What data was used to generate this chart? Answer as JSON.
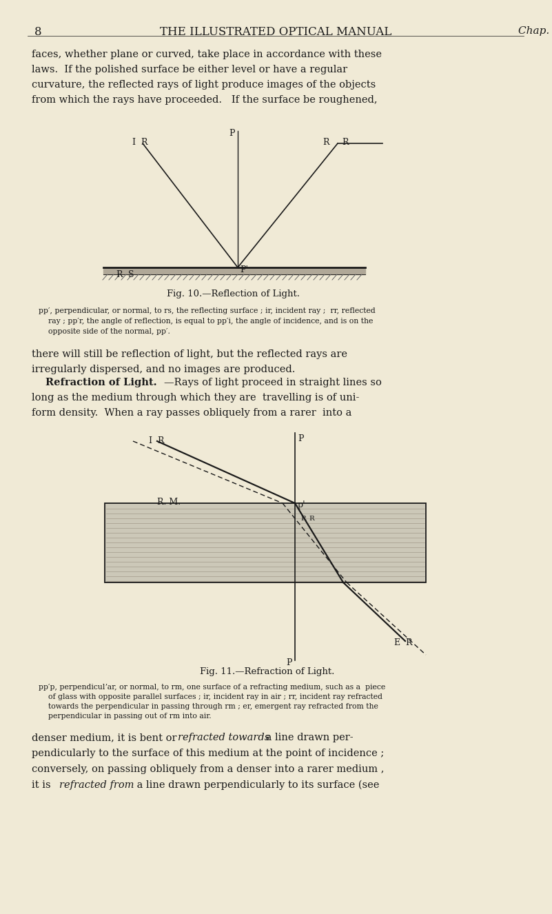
{
  "bg_color": "#f0ead6",
  "text_color": "#1a1a1a",
  "line_color": "#1a1a1a",
  "page_width": 8.01,
  "page_height": 13.26,
  "header_text": "THE ILLUSTRATED OPTICAL MANUAL",
  "header_page": "8",
  "header_chap": "Chap. I",
  "para1": "faces, whether plane or curved, take place in accordance with these\nlaws.  If the polished surface be either level or have a regular\ncurvature, the reflected rays of light produce images of the objects\nfrom which the rays have proceeded.   If the surface be roughened,",
  "fig10_caption": "Fig. 10.—Reflection of Light.",
  "fig10_desc1": "pp′, perpendicular, or normal, to rs, the reflecting surface ; ir, incident ray ;  rr, reflected",
  "fig10_desc2": "    ray ; pp′r, the angle of reflection, is equal to pp′i, the angle of incidence, and is on the",
  "fig10_desc3": "    opposite side of the normal, pp′.",
  "para2_line1": "there will still be reflection of light, but the reflected rays are",
  "para2_line2": "irregularly dispersed, and no images are produced.",
  "para3_bold": "Refraction of Light.",
  "para3_rest1": "—Rays of light proceed in straight lines so",
  "para3_line2": "long as the medium through which they are  travelling is of uni-",
  "para3_line3": "form density.  When a ray passes obliquely from a rarer  into a",
  "fig11_caption": "Fig. 11.—Refraction of Light.",
  "fig11_desc1": "pp′p, perpendiculʼar, or normal, to rm, one surface of a refracting medium, such as a  piece",
  "fig11_desc2": "    of glass with opposite parallel surfaces ; ir, incident ray in air ; rr, incident ray refracted",
  "fig11_desc3": "    towards the perpendicular in passing through rm ; er, emergent ray refracted from the",
  "fig11_desc4": "    perpendicular in passing out of rm into air.",
  "para4_line1a": "denser medium, it is bent or ",
  "para4_line1b": "refracted towards",
  "para4_line1c": " a line drawn per-",
  "para4_line2": "pendicularly to the surface of this medium at the point of incidence ;",
  "para4_line3": "conversely, on passing obliquely from a denser into a rarer medium ,",
  "para4_line4a": "it is ",
  "para4_line4b": "refracted from",
  "para4_line4c": " a line drawn perpendicularly to its surface (see"
}
